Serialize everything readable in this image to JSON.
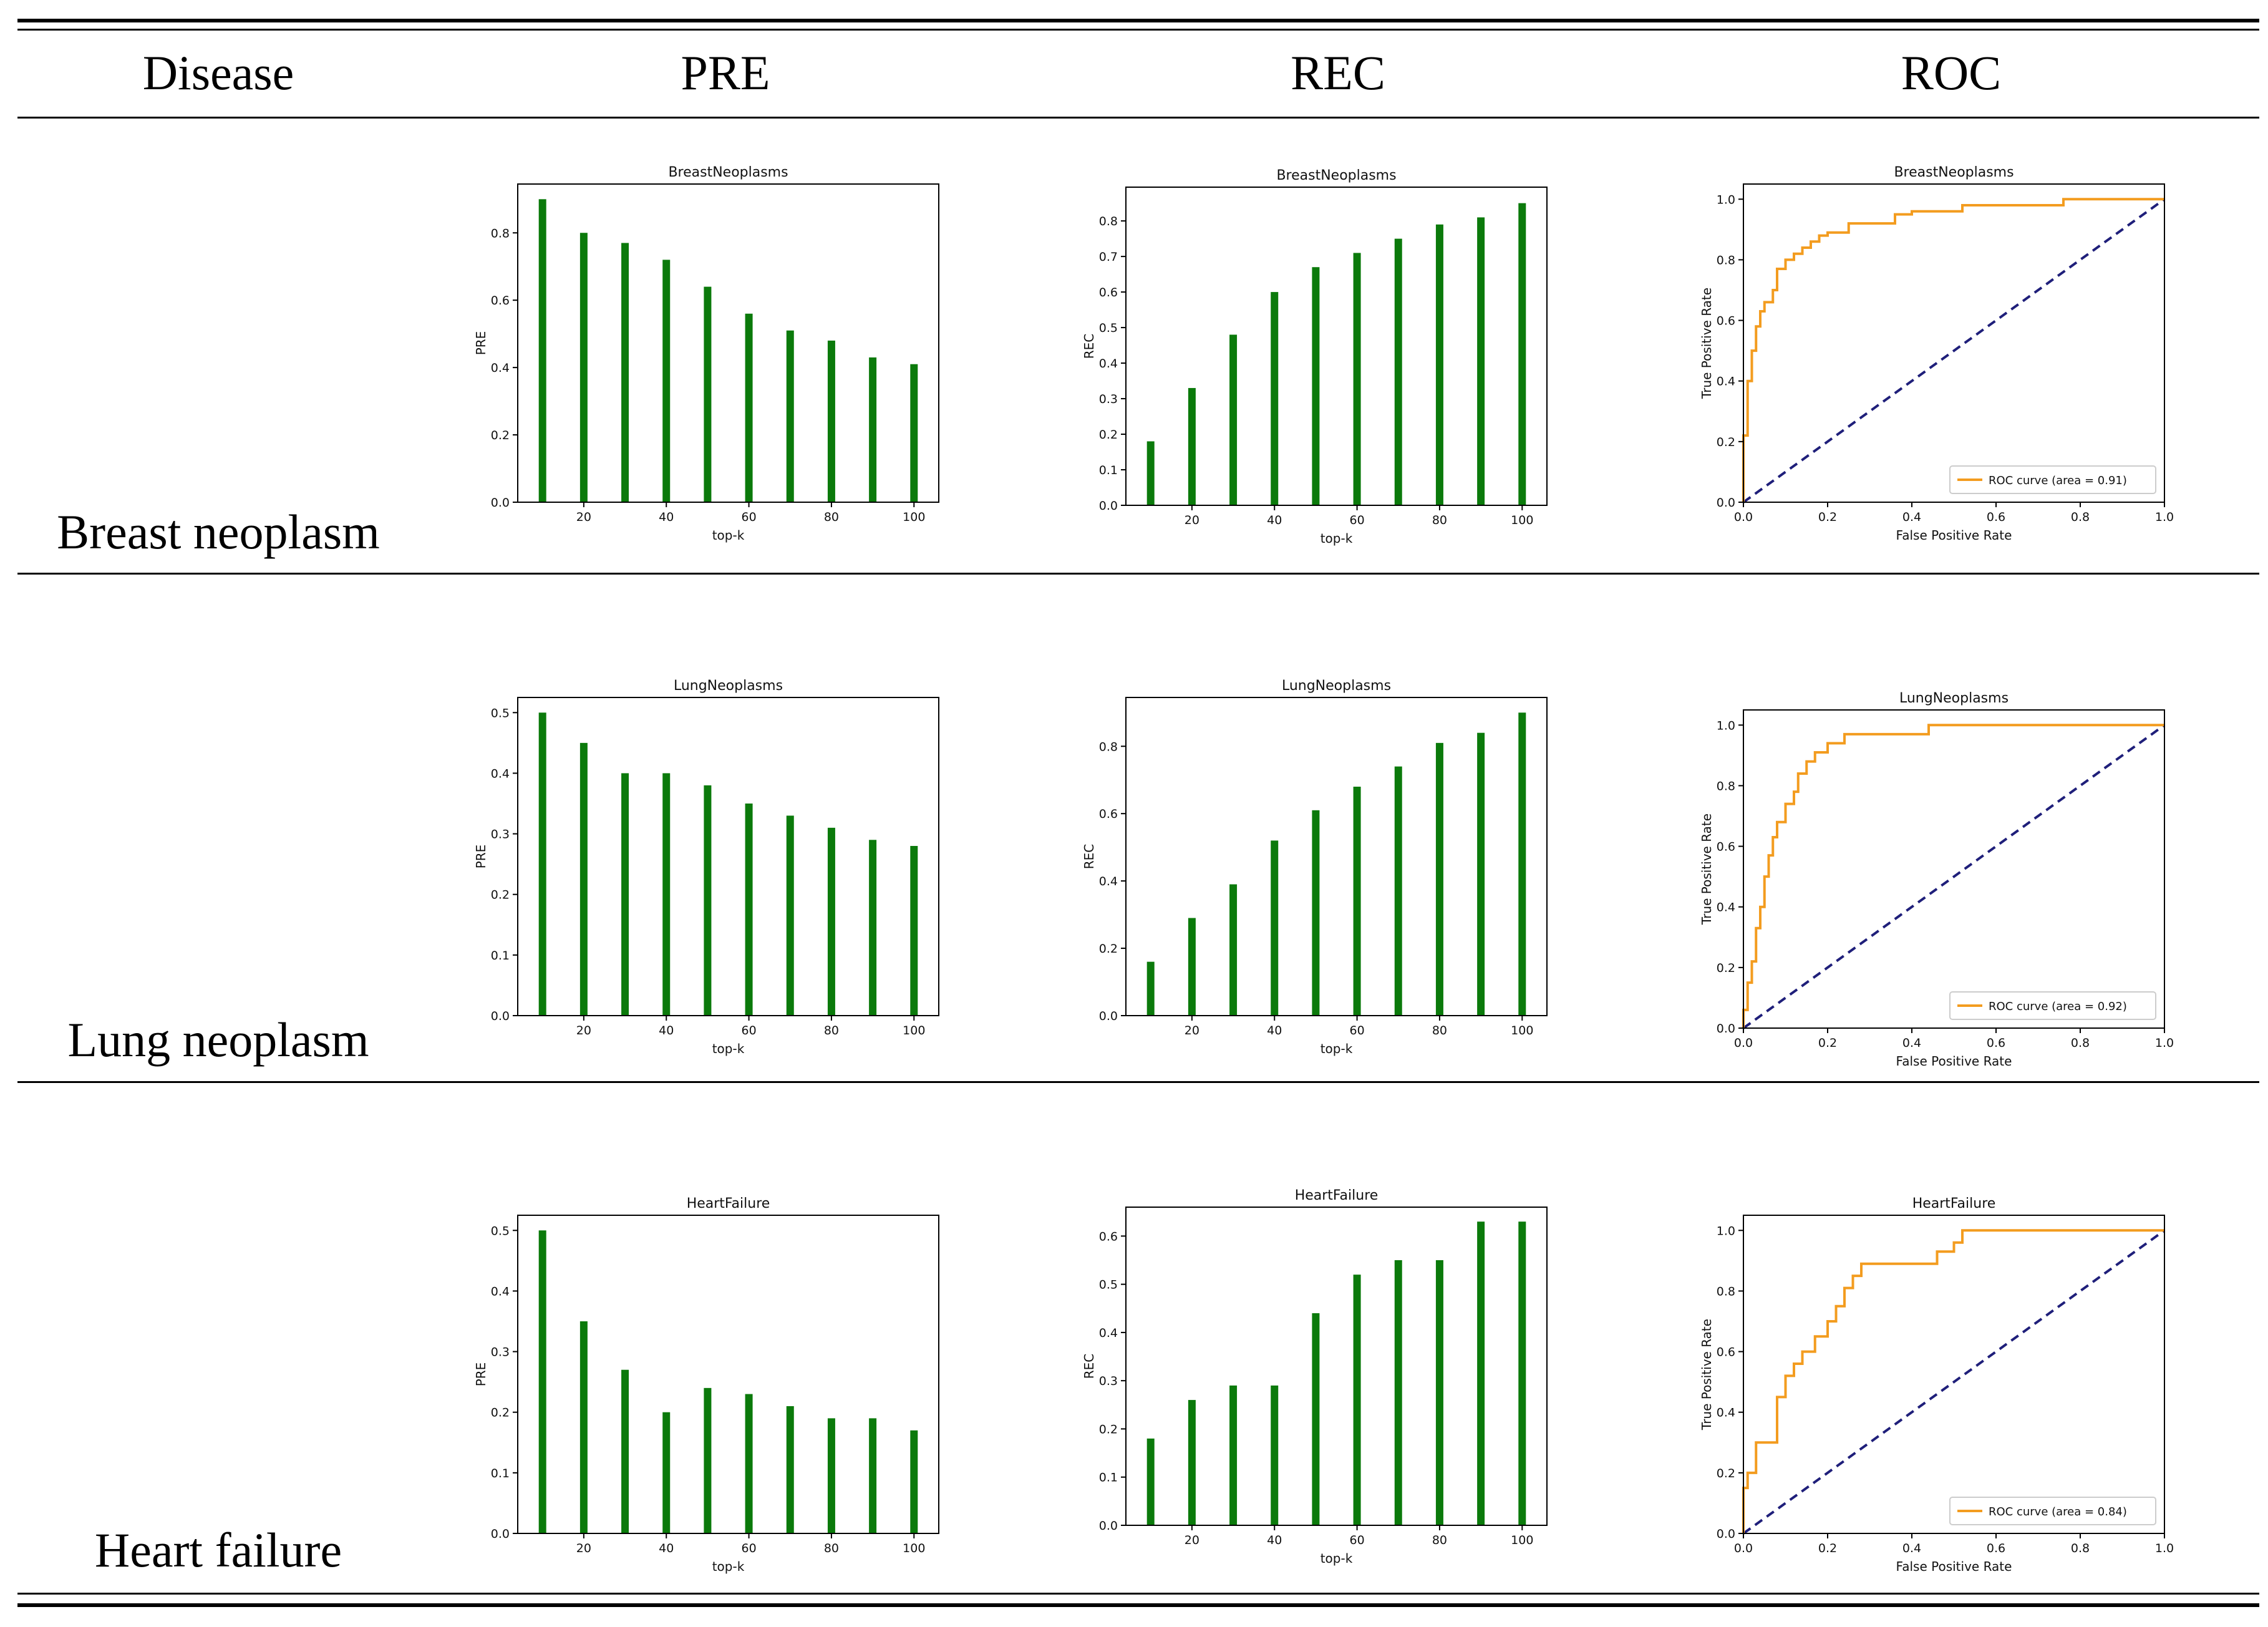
{
  "table": {
    "headers": [
      "Disease",
      "PRE",
      "REC",
      "ROC"
    ],
    "rows": [
      {
        "disease": "Breast neoplasm"
      },
      {
        "disease": "Lung neoplasm"
      },
      {
        "disease": "Heart failure"
      }
    ]
  },
  "colors": {
    "bar": "#0b7a0b",
    "roc_curve": "#f39c1f",
    "diagonal": "#1f1f7a",
    "axis": "#000000"
  },
  "chart_data": [
    {
      "id": "bn-pre",
      "type": "bar",
      "title": "BreastNeoplasms",
      "xlabel": "top-k",
      "ylabel": "PRE",
      "x": [
        10,
        20,
        30,
        40,
        50,
        60,
        70,
        80,
        90,
        100
      ],
      "values": [
        0.9,
        0.8,
        0.77,
        0.72,
        0.64,
        0.56,
        0.51,
        0.48,
        0.43,
        0.41
      ],
      "xlim": [
        4,
        106
      ],
      "ylim": [
        0,
        0.945
      ],
      "xticks": [
        20,
        40,
        60,
        80,
        100
      ],
      "yticks": [
        0.0,
        0.2,
        0.4,
        0.6,
        0.8
      ],
      "xtick_labels": [
        "20",
        "40",
        "60",
        "80",
        "100"
      ],
      "ytick_labels": [
        "0.0",
        "0.2",
        "0.4",
        "0.6",
        "0.8"
      ]
    },
    {
      "id": "bn-rec",
      "type": "bar",
      "title": "BreastNeoplasms",
      "xlabel": "top-k",
      "ylabel": "REC",
      "x": [
        10,
        20,
        30,
        40,
        50,
        60,
        70,
        80,
        90,
        100
      ],
      "values": [
        0.18,
        0.33,
        0.48,
        0.6,
        0.67,
        0.71,
        0.75,
        0.79,
        0.81,
        0.85
      ],
      "xlim": [
        4,
        106
      ],
      "ylim": [
        0,
        0.895
      ],
      "xticks": [
        20,
        40,
        60,
        80,
        100
      ],
      "yticks": [
        0.0,
        0.1,
        0.2,
        0.3,
        0.4,
        0.5,
        0.6,
        0.7,
        0.8
      ],
      "xtick_labels": [
        "20",
        "40",
        "60",
        "80",
        "100"
      ],
      "ytick_labels": [
        "0.0",
        "0.1",
        "0.2",
        "0.3",
        "0.4",
        "0.5",
        "0.6",
        "0.7",
        "0.8"
      ]
    },
    {
      "id": "bn-roc",
      "type": "line",
      "title": "BreastNeoplasms",
      "xlabel": "False Positive Rate",
      "ylabel": "True Positive Rate",
      "xlim": [
        0,
        1
      ],
      "ylim": [
        0,
        1.05
      ],
      "xticks": [
        0,
        0.2,
        0.4,
        0.6,
        0.8,
        1.0
      ],
      "yticks": [
        0,
        0.2,
        0.4,
        0.6,
        0.8,
        1.0
      ],
      "xtick_labels": [
        "0.0",
        "0.2",
        "0.4",
        "0.6",
        "0.8",
        "1.0"
      ],
      "ytick_labels": [
        "0.0",
        "0.2",
        "0.4",
        "0.6",
        "0.8",
        "1.0"
      ],
      "legend": "ROC curve (area = 0.91)",
      "legend_position": "lower-right",
      "series": [
        {
          "name": "ROC curve",
          "x": [
            0,
            0,
            0.01,
            0.01,
            0.02,
            0.02,
            0.03,
            0.03,
            0.04,
            0.04,
            0.05,
            0.05,
            0.07,
            0.07,
            0.08,
            0.08,
            0.1,
            0.1,
            0.12,
            0.12,
            0.14,
            0.14,
            0.16,
            0.16,
            0.18,
            0.18,
            0.2,
            0.2,
            0.25,
            0.25,
            0.36,
            0.36,
            0.4,
            0.4,
            0.52,
            0.52,
            0.76,
            0.76,
            1.0
          ],
          "y": [
            0,
            0.22,
            0.22,
            0.4,
            0.4,
            0.5,
            0.5,
            0.58,
            0.58,
            0.63,
            0.63,
            0.66,
            0.66,
            0.7,
            0.7,
            0.77,
            0.77,
            0.8,
            0.8,
            0.82,
            0.82,
            0.84,
            0.84,
            0.86,
            0.86,
            0.88,
            0.88,
            0.89,
            0.89,
            0.92,
            0.92,
            0.95,
            0.95,
            0.96,
            0.96,
            0.98,
            0.98,
            1.0,
            1.0
          ]
        },
        {
          "name": "diagonal",
          "x": [
            0,
            1
          ],
          "y": [
            0,
            1
          ]
        }
      ]
    },
    {
      "id": "ln-pre",
      "type": "bar",
      "title": "LungNeoplasms",
      "xlabel": "top-k",
      "ylabel": "PRE",
      "x": [
        10,
        20,
        30,
        40,
        50,
        60,
        70,
        80,
        90,
        100
      ],
      "values": [
        0.5,
        0.45,
        0.4,
        0.4,
        0.38,
        0.35,
        0.33,
        0.31,
        0.29,
        0.28
      ],
      "xlim": [
        4,
        106
      ],
      "ylim": [
        0,
        0.525
      ],
      "xticks": [
        20,
        40,
        60,
        80,
        100
      ],
      "yticks": [
        0.0,
        0.1,
        0.2,
        0.3,
        0.4,
        0.5
      ],
      "xtick_labels": [
        "20",
        "40",
        "60",
        "80",
        "100"
      ],
      "ytick_labels": [
        "0.0",
        "0.1",
        "0.2",
        "0.3",
        "0.4",
        "0.5"
      ]
    },
    {
      "id": "ln-rec",
      "type": "bar",
      "title": "LungNeoplasms",
      "xlabel": "top-k",
      "ylabel": "REC",
      "x": [
        10,
        20,
        30,
        40,
        50,
        60,
        70,
        80,
        90,
        100
      ],
      "values": [
        0.16,
        0.29,
        0.39,
        0.52,
        0.61,
        0.68,
        0.74,
        0.81,
        0.84,
        0.9
      ],
      "xlim": [
        4,
        106
      ],
      "ylim": [
        0,
        0.945
      ],
      "xticks": [
        20,
        40,
        60,
        80,
        100
      ],
      "yticks": [
        0.0,
        0.2,
        0.4,
        0.6,
        0.8
      ],
      "xtick_labels": [
        "20",
        "40",
        "60",
        "80",
        "100"
      ],
      "ytick_labels": [
        "0.0",
        "0.2",
        "0.4",
        "0.6",
        "0.8"
      ]
    },
    {
      "id": "ln-roc",
      "type": "line",
      "title": "LungNeoplasms",
      "xlabel": "False Positive Rate",
      "ylabel": "True Positive Rate",
      "xlim": [
        0,
        1
      ],
      "ylim": [
        0,
        1.05
      ],
      "xticks": [
        0,
        0.2,
        0.4,
        0.6,
        0.8,
        1.0
      ],
      "yticks": [
        0,
        0.2,
        0.4,
        0.6,
        0.8,
        1.0
      ],
      "xtick_labels": [
        "0.0",
        "0.2",
        "0.4",
        "0.6",
        "0.8",
        "1.0"
      ],
      "ytick_labels": [
        "0.0",
        "0.2",
        "0.4",
        "0.6",
        "0.8",
        "1.0"
      ],
      "legend": "ROC curve (area = 0.92)",
      "legend_position": "lower-right",
      "series": [
        {
          "name": "ROC curve",
          "x": [
            0,
            0,
            0.01,
            0.01,
            0.02,
            0.02,
            0.03,
            0.03,
            0.04,
            0.04,
            0.05,
            0.05,
            0.06,
            0.06,
            0.07,
            0.07,
            0.08,
            0.08,
            0.1,
            0.1,
            0.12,
            0.12,
            0.13,
            0.13,
            0.15,
            0.15,
            0.17,
            0.17,
            0.2,
            0.2,
            0.24,
            0.24,
            0.44,
            0.44,
            1.0
          ],
          "y": [
            0,
            0.06,
            0.06,
            0.15,
            0.15,
            0.22,
            0.22,
            0.33,
            0.33,
            0.4,
            0.4,
            0.5,
            0.5,
            0.57,
            0.57,
            0.63,
            0.63,
            0.68,
            0.68,
            0.74,
            0.74,
            0.78,
            0.78,
            0.84,
            0.84,
            0.88,
            0.88,
            0.91,
            0.91,
            0.94,
            0.94,
            0.97,
            0.97,
            1.0,
            1.0
          ]
        },
        {
          "name": "diagonal",
          "x": [
            0,
            1
          ],
          "y": [
            0,
            1
          ]
        }
      ]
    },
    {
      "id": "hf-pre",
      "type": "bar",
      "title": "HeartFailure",
      "xlabel": "top-k",
      "ylabel": "PRE",
      "x": [
        10,
        20,
        30,
        40,
        50,
        60,
        70,
        80,
        90,
        100
      ],
      "values": [
        0.5,
        0.35,
        0.27,
        0.2,
        0.24,
        0.23,
        0.21,
        0.19,
        0.19,
        0.17
      ],
      "xlim": [
        4,
        106
      ],
      "ylim": [
        0,
        0.525
      ],
      "xticks": [
        20,
        40,
        60,
        80,
        100
      ],
      "yticks": [
        0.0,
        0.1,
        0.2,
        0.3,
        0.4,
        0.5
      ],
      "xtick_labels": [
        "20",
        "40",
        "60",
        "80",
        "100"
      ],
      "ytick_labels": [
        "0.0",
        "0.1",
        "0.2",
        "0.3",
        "0.4",
        "0.5"
      ]
    },
    {
      "id": "hf-rec",
      "type": "bar",
      "title": "HeartFailure",
      "xlabel": "top-k",
      "ylabel": "REC",
      "x": [
        10,
        20,
        30,
        40,
        50,
        60,
        70,
        80,
        90,
        100
      ],
      "values": [
        0.18,
        0.26,
        0.29,
        0.29,
        0.44,
        0.52,
        0.55,
        0.55,
        0.63,
        0.63
      ],
      "xlim": [
        4,
        106
      ],
      "ylim": [
        0,
        0.66
      ],
      "xticks": [
        20,
        40,
        60,
        80,
        100
      ],
      "yticks": [
        0.0,
        0.1,
        0.2,
        0.3,
        0.4,
        0.5,
        0.6
      ],
      "xtick_labels": [
        "20",
        "40",
        "60",
        "80",
        "100"
      ],
      "ytick_labels": [
        "0.0",
        "0.1",
        "0.2",
        "0.3",
        "0.4",
        "0.5",
        "0.6"
      ]
    },
    {
      "id": "hf-roc",
      "type": "line",
      "title": "HeartFailure",
      "xlabel": "False Positive Rate",
      "ylabel": "True Positive Rate",
      "xlim": [
        0,
        1
      ],
      "ylim": [
        0,
        1.05
      ],
      "xticks": [
        0,
        0.2,
        0.4,
        0.6,
        0.8,
        1.0
      ],
      "yticks": [
        0,
        0.2,
        0.4,
        0.6,
        0.8,
        1.0
      ],
      "xtick_labels": [
        "0.0",
        "0.2",
        "0.4",
        "0.6",
        "0.8",
        "1.0"
      ],
      "ytick_labels": [
        "0.0",
        "0.2",
        "0.4",
        "0.6",
        "0.8",
        "1.0"
      ],
      "legend": "ROC curve (area = 0.84)",
      "legend_position": "lower-right",
      "series": [
        {
          "name": "ROC curve",
          "x": [
            0,
            0,
            0.01,
            0.01,
            0.03,
            0.03,
            0.08,
            0.08,
            0.1,
            0.1,
            0.12,
            0.12,
            0.14,
            0.14,
            0.17,
            0.17,
            0.2,
            0.2,
            0.22,
            0.22,
            0.24,
            0.24,
            0.26,
            0.26,
            0.28,
            0.28,
            0.46,
            0.46,
            0.5,
            0.5,
            0.52,
            0.52,
            1.0
          ],
          "y": [
            0,
            0.15,
            0.15,
            0.2,
            0.2,
            0.3,
            0.3,
            0.45,
            0.45,
            0.52,
            0.52,
            0.56,
            0.56,
            0.6,
            0.6,
            0.65,
            0.65,
            0.7,
            0.7,
            0.75,
            0.75,
            0.81,
            0.81,
            0.85,
            0.85,
            0.89,
            0.89,
            0.93,
            0.93,
            0.96,
            0.96,
            1.0,
            1.0
          ]
        },
        {
          "name": "diagonal",
          "x": [
            0,
            1
          ],
          "y": [
            0,
            1
          ]
        }
      ]
    }
  ]
}
